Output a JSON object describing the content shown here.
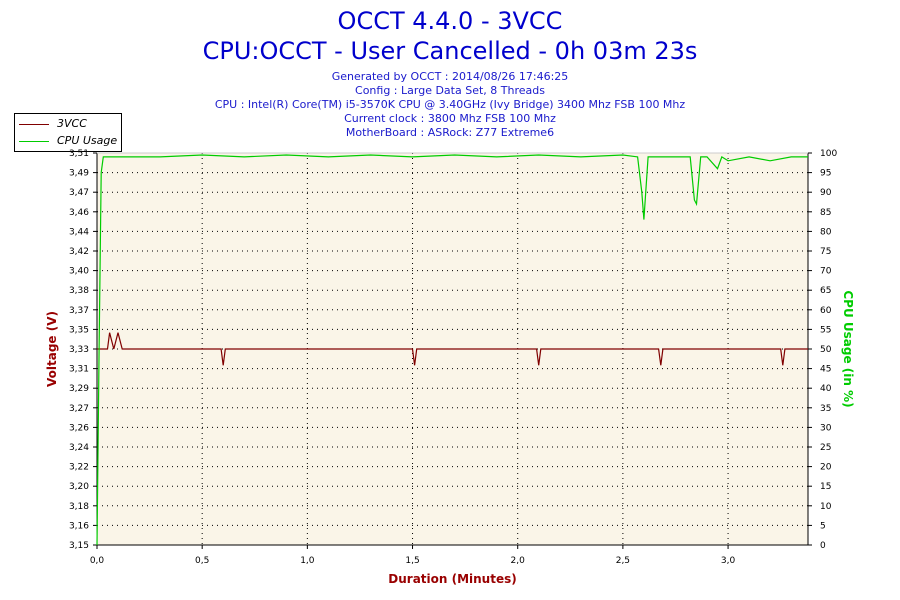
{
  "header": {
    "title": "OCCT 4.4.0 - 3VCC",
    "subtitle": "CPU:OCCT - User Cancelled - 0h 03m 23s",
    "info_lines": [
      "Generated by OCCT : 2014/08/26 17:46:25",
      "Config : Large Data Set, 8 Threads",
      "CPU : Intel(R) Core(TM) i5-3570K CPU @ 3.40GHz (Ivy Bridge) 3400 Mhz FSB 100 Mhz",
      "Current clock : 3800 Mhz FSB 100 Mhz",
      "MotherBoard : ASRock: Z77 Extreme6"
    ]
  },
  "legend": [
    {
      "label": "3VCC",
      "color": "#800000"
    },
    {
      "label": "CPU Usage",
      "color": "#00cc00"
    }
  ],
  "colors": {
    "plot_background": "#faf5e8",
    "voltage_series": "#800000",
    "cpu_series": "#00cc00",
    "left_axis_title": "#990000",
    "right_axis_title": "#00cc00",
    "x_axis_title": "#990000"
  },
  "chart_data": {
    "type": "line",
    "title": "OCCT 4.4.0 - 3VCC",
    "subtitle": "CPU:OCCT - User Cancelled - 0h 03m 23s",
    "xlabel": "Duration (Minutes)",
    "ylabel": "Voltage (V)",
    "y2label": "CPU Usage (in %)",
    "xlim": [
      0,
      3.38
    ],
    "ylim": [
      3.15,
      3.51
    ],
    "y2lim": [
      0,
      100
    ],
    "x_ticks": [
      "0,0",
      "0,5",
      "1,0",
      "1,5",
      "2,0",
      "2,5",
      "3,0"
    ],
    "x_tick_values": [
      0,
      0.5,
      1.0,
      1.5,
      2.0,
      2.5,
      3.0
    ],
    "y_ticks": [
      "3,15",
      "3,16",
      "3,18",
      "3,20",
      "3,22",
      "3,24",
      "3,26",
      "3,27",
      "3,29",
      "3,31",
      "3,33",
      "3,35",
      "3,37",
      "3,38",
      "3,40",
      "3,42",
      "3,44",
      "3,46",
      "3,47",
      "3,49",
      "3,51"
    ],
    "y2_ticks": [
      "0",
      "5",
      "10",
      "15",
      "20",
      "25",
      "30",
      "35",
      "40",
      "45",
      "50",
      "55",
      "60",
      "65",
      "70",
      "75",
      "80",
      "85",
      "90",
      "95",
      "100"
    ],
    "grid": true,
    "legend_position": "top-left",
    "series": [
      {
        "name": "3VCC",
        "axis": "left",
        "x": [
          0.0,
          0.05,
          0.06,
          0.08,
          0.1,
          0.12,
          0.14,
          0.59,
          0.6,
          0.61,
          0.62,
          1.5,
          1.51,
          1.52,
          1.53,
          2.09,
          2.1,
          2.11,
          2.12,
          2.67,
          2.68,
          2.69,
          2.7,
          3.25,
          3.26,
          3.27,
          3.28,
          3.38
        ],
        "values": [
          3.33,
          3.33,
          3.345,
          3.33,
          3.345,
          3.33,
          3.33,
          3.33,
          3.315,
          3.33,
          3.33,
          3.33,
          3.315,
          3.33,
          3.33,
          3.33,
          3.315,
          3.33,
          3.33,
          3.33,
          3.315,
          3.33,
          3.33,
          3.33,
          3.315,
          3.33,
          3.33,
          3.33
        ]
      },
      {
        "name": "CPU Usage",
        "axis": "right",
        "x": [
          0.0,
          0.01,
          0.02,
          0.03,
          0.05,
          0.1,
          0.3,
          0.5,
          0.7,
          0.9,
          1.1,
          1.3,
          1.5,
          1.7,
          1.9,
          2.1,
          2.3,
          2.5,
          2.57,
          2.59,
          2.6,
          2.62,
          2.7,
          2.82,
          2.84,
          2.85,
          2.87,
          2.9,
          2.95,
          2.97,
          3.0,
          3.1,
          3.2,
          3.3,
          3.38
        ],
        "values": [
          0,
          50,
          95,
          99,
          99,
          99,
          99,
          99.5,
          99,
          99.5,
          99,
          99.5,
          99,
          99.5,
          99,
          99.5,
          99,
          99.5,
          99,
          90,
          83,
          99,
          99,
          99,
          88,
          87,
          99,
          99,
          96,
          99,
          98,
          99,
          98,
          99,
          99
        ]
      }
    ]
  }
}
